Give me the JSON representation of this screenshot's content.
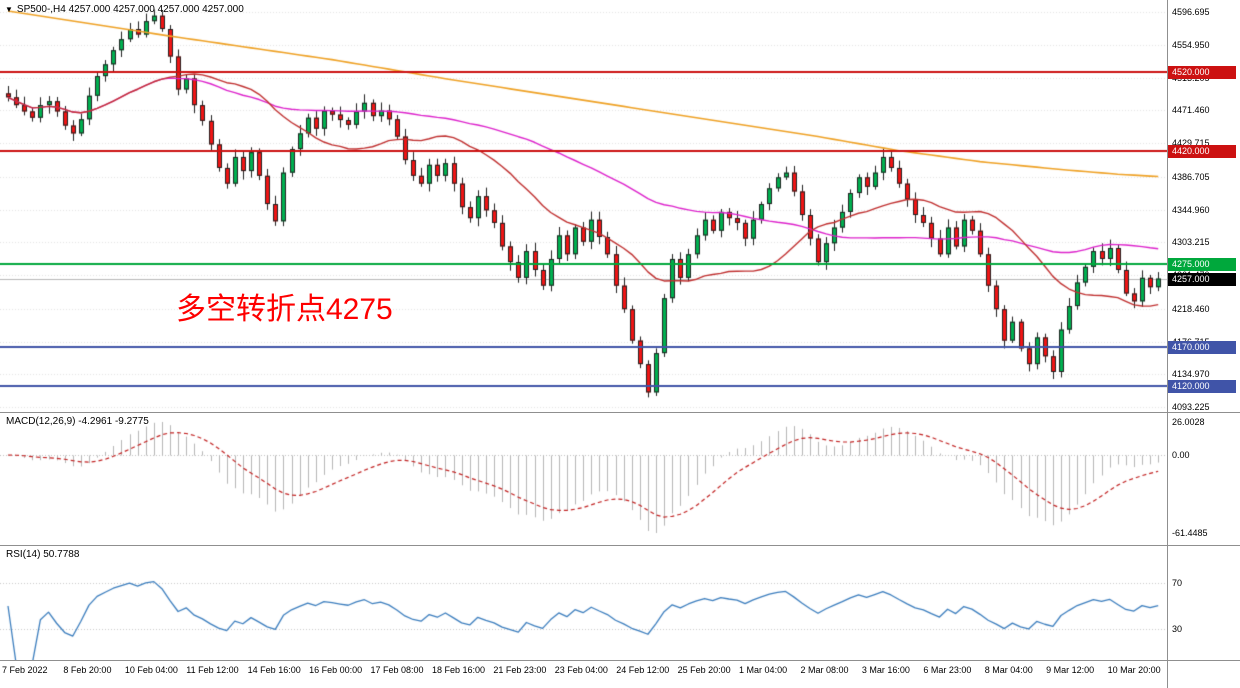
{
  "chart_data": {
    "type": "candlestick",
    "symbol": "SP500-",
    "timeframe": "H4",
    "title": "SP500-,H4 4257.000 4257.000 4257.000 4257.000",
    "annotation": {
      "text": "多空转折点4275",
      "color": "#fe0000"
    },
    "price_axis": {
      "min": 4087,
      "max": 4612,
      "ticks": [
        4596.695,
        4554.95,
        4513.205,
        4471.46,
        4429.715,
        4386.705,
        4344.96,
        4303.215,
        4261.47,
        4218.46,
        4176.715,
        4134.97,
        4093.225
      ]
    },
    "time_axis": [
      "7 Feb 2022",
      "8 Feb 20:00",
      "10 Feb 04:00",
      "11 Feb 12:00",
      "14 Feb 16:00",
      "16 Feb 00:00",
      "17 Feb 08:00",
      "18 Feb 16:00",
      "21 Feb 23:00",
      "23 Feb 04:00",
      "24 Feb 12:00",
      "25 Feb 20:00",
      "1 Mar 04:00",
      "2 Mar 08:00",
      "3 Mar 16:00",
      "6 Mar 23:00",
      "8 Mar 04:00",
      "9 Mar 12:00",
      "10 Mar 20:00"
    ],
    "closes": [
      4488,
      4478,
      4470,
      4462,
      4478,
      4483,
      4470,
      4452,
      4442,
      4460,
      4490,
      4515,
      4530,
      4548,
      4562,
      4575,
      4568,
      4585,
      4592,
      4575,
      4540,
      4498,
      4512,
      4478,
      4458,
      4428,
      4398,
      4378,
      4412,
      4394,
      4418,
      4388,
      4352,
      4330,
      4392,
      4422,
      4442,
      4462,
      4448,
      4471,
      4466,
      4459,
      4453,
      4470,
      4481,
      4464,
      4471,
      4460,
      4438,
      4408,
      4388,
      4378,
      4402,
      4388,
      4404,
      4378,
      4348,
      4334,
      4362,
      4344,
      4328,
      4298,
      4278,
      4258,
      4292,
      4268,
      4248,
      4282,
      4312,
      4288,
      4322,
      4304,
      4332,
      4310,
      4288,
      4248,
      4218,
      4178,
      4148,
      4112,
      4162,
      4232,
      4282,
      4258,
      4288,
      4312,
      4332,
      4318,
      4342,
      4334,
      4328,
      4308,
      4332,
      4352,
      4372,
      4386,
      4392,
      4368,
      4338,
      4308,
      4278,
      4302,
      4322,
      4342,
      4366,
      4386,
      4374,
      4392,
      4412,
      4398,
      4378,
      4358,
      4338,
      4328,
      4308,
      4288,
      4322,
      4298,
      4332,
      4318,
      4288,
      4248,
      4218,
      4178,
      4202,
      4168,
      4148,
      4182,
      4158,
      4138,
      4192,
      4222,
      4252,
      4272,
      4292,
      4282,
      4296,
      4268,
      4238,
      4228,
      4258,
      4246,
      4257
    ],
    "candle_colors": {
      "up": "#00b050",
      "down": "#f01515",
      "outline": "#202020",
      "wick": "#202020"
    },
    "hlines": [
      {
        "value": 4520,
        "label": "4520.000",
        "color": "#cc1111"
      },
      {
        "value": 4420,
        "label": "4420.000",
        "color": "#cc1111"
      },
      {
        "value": 4275,
        "label": "4275.000",
        "color": "#00a83c"
      },
      {
        "value": 4170,
        "label": "4170.000",
        "color": "#4054a8"
      },
      {
        "value": 4120,
        "label": "4120.000",
        "color": "#4054a8"
      }
    ],
    "current_price": {
      "value": 4257.0,
      "label": "4257.000",
      "tag_bg": "#000000",
      "line_color": "#b8b8b8"
    },
    "moving_averages": {
      "fast_red": {
        "period": 20,
        "color": "#c03030"
      },
      "medium_magenta": {
        "period": 55,
        "color": "#dd22cc"
      },
      "slow_orange": {
        "color": "#efa226",
        "points": [
          [
            0,
            4598
          ],
          [
            20,
            4566
          ],
          [
            40,
            4536
          ],
          [
            55,
            4510
          ],
          [
            70,
            4486
          ],
          [
            85,
            4462
          ],
          [
            100,
            4438
          ],
          [
            110,
            4420
          ],
          [
            120,
            4406
          ],
          [
            130,
            4396
          ],
          [
            137,
            4390
          ],
          [
            142,
            4387
          ]
        ]
      }
    },
    "indicators": {
      "macd": {
        "label": "MACD(12,26,9) -4.2961 -9.2775",
        "params": [
          12,
          26,
          9
        ],
        "value": -4.2961,
        "signal_value": -9.2775,
        "scale_labels": [
          {
            "text": "26.0028",
            "value": 26.0028
          },
          {
            "text": "0.00",
            "value": 0
          },
          {
            "text": "-61.4485",
            "value": -61.4485
          }
        ],
        "histogram_color": "#b6b6b6",
        "signal_color": "#c22222"
      },
      "rsi": {
        "label": "RSI(14) 50.7788",
        "period": 14,
        "value": 50.7788,
        "levels": [
          {
            "text": "70",
            "value": 70
          },
          {
            "text": "30",
            "value": 30
          }
        ],
        "line_color": "#3c7ebe",
        "level_color": "#c9c9c9"
      }
    },
    "grid_color": "#e4e4e4"
  }
}
